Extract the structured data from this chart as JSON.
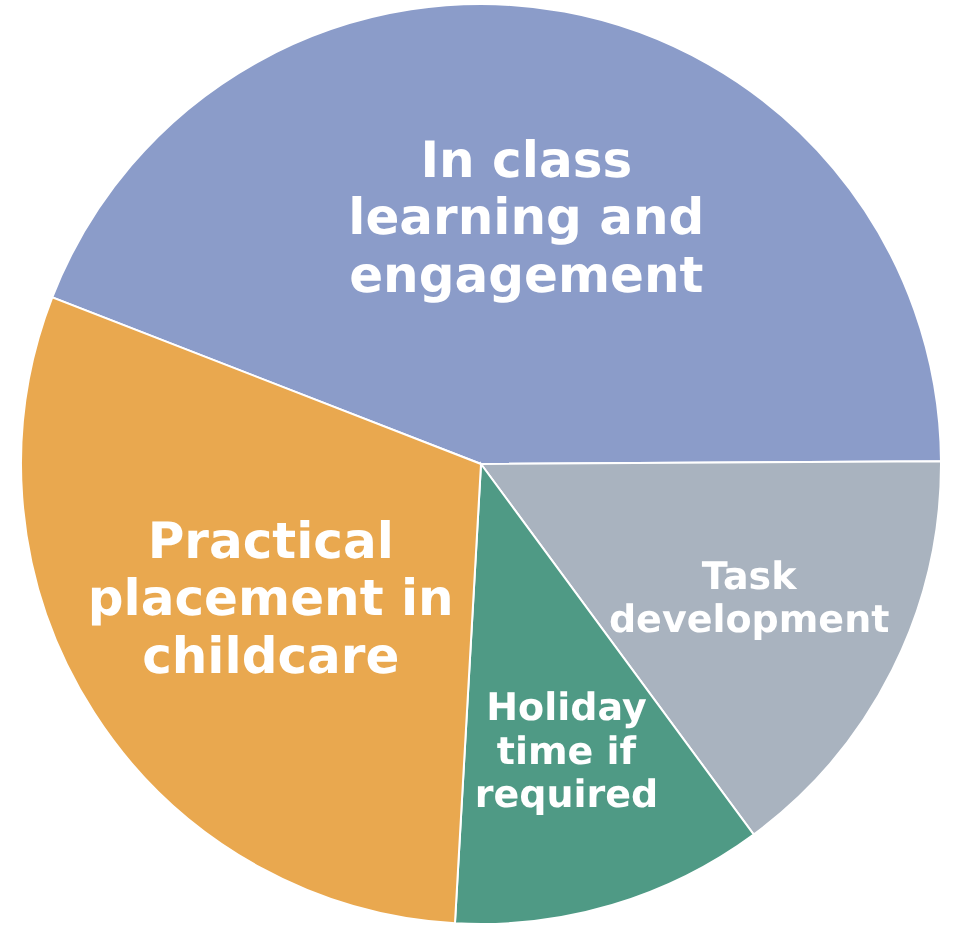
{
  "chart_data": {
    "type": "pie",
    "categories": [
      "In class learning and engagement",
      "Task development",
      "Holiday time if required",
      "Practical placement in childcare"
    ],
    "values": [
      44,
      15,
      11,
      30
    ],
    "colors": [
      "#8b9cc9",
      "#a9b3bf",
      "#4f9a85",
      "#e9a84f"
    ]
  }
}
